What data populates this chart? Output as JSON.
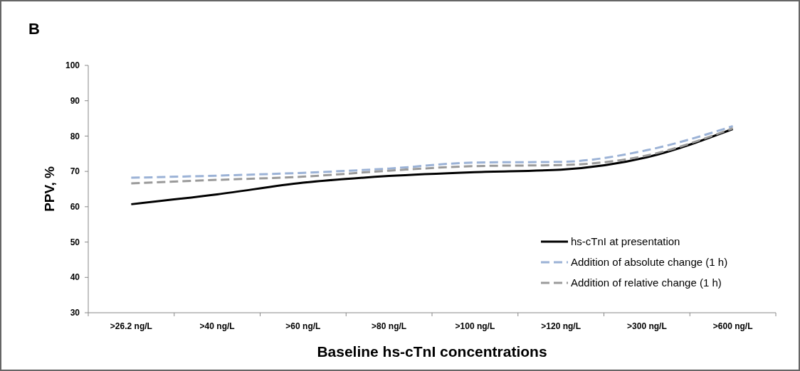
{
  "chart_data": {
    "type": "line",
    "annotations": [
      "B"
    ],
    "xlabel": "Baseline hs-cTnI concentrations",
    "ylabel": "PPV, %",
    "categories": [
      ">26.2 ng/L",
      ">40 ng/L",
      ">60 ng/L",
      ">80 ng/L",
      ">100 ng/L",
      ">120 ng/L",
      ">300 ng/L",
      ">600 ng/L"
    ],
    "series": [
      {
        "name": "hs-cTnI at presentation",
        "color": "#000000",
        "line_style": "solid",
        "values": [
          60.7,
          63.5,
          66.8,
          68.7,
          69.8,
          70.5,
          74,
          82
        ]
      },
      {
        "name": "Addition of absolute change (1 h)",
        "color": "#9bb2d6",
        "line_style": "dashed",
        "values": [
          68.2,
          68.8,
          69.6,
          70.8,
          72.5,
          72.7,
          76,
          82.8
        ]
      },
      {
        "name": "Addition of relative change (1 h)",
        "color": "#9a9a9a",
        "line_style": "dashed",
        "values": [
          66.6,
          67.6,
          68.5,
          70.2,
          71.5,
          71.8,
          74.5,
          82.2
        ]
      }
    ],
    "ylim": [
      30,
      100
    ],
    "yticks": [
      30,
      40,
      50,
      60,
      70,
      80,
      90,
      100
    ],
    "legend": "bottom right",
    "grid": false,
    "marker": "none"
  }
}
